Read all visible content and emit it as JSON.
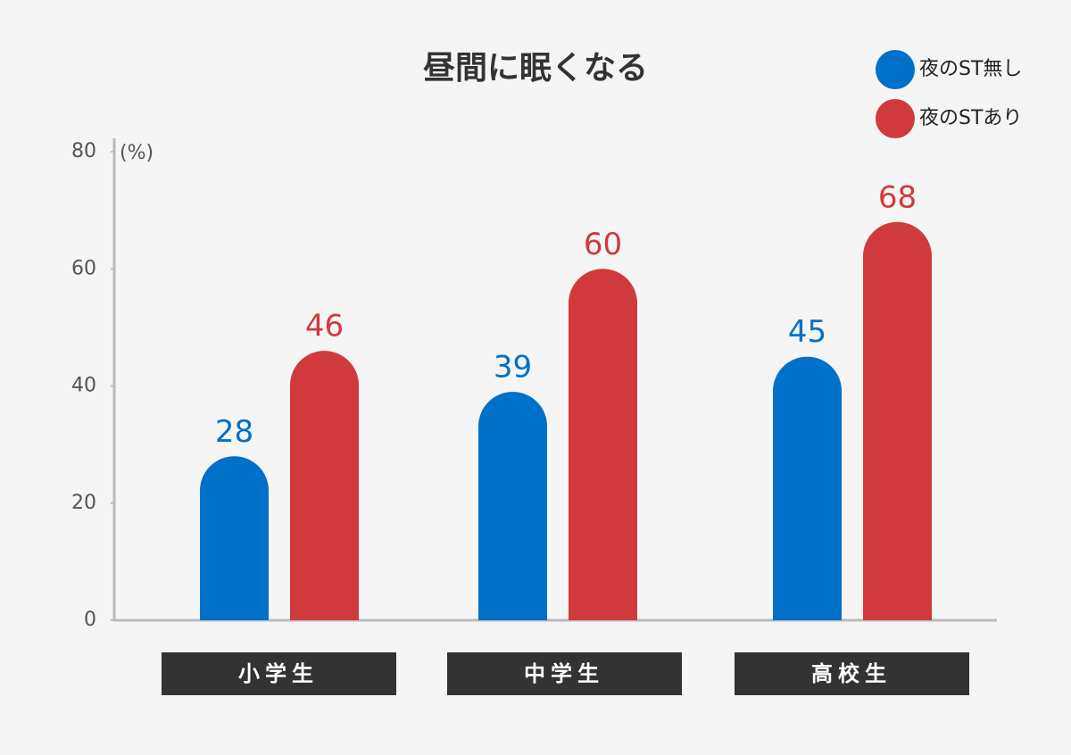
{
  "chart_data": {
    "type": "bar",
    "title": "昼間に眠くなる",
    "y_label": "(%)",
    "categories": [
      "小学生",
      "中学生",
      "高校生"
    ],
    "series": [
      {
        "name": "夜のST無し",
        "color": "#0070c8",
        "values": [
          28,
          39,
          45
        ]
      },
      {
        "name": "夜のSTあり",
        "color": "#d03a3c",
        "values": [
          46,
          60,
          68
        ]
      }
    ],
    "ylim": [
      0,
      80
    ],
    "yticks": [
      0,
      20,
      40,
      60,
      80
    ],
    "grid": false
  }
}
